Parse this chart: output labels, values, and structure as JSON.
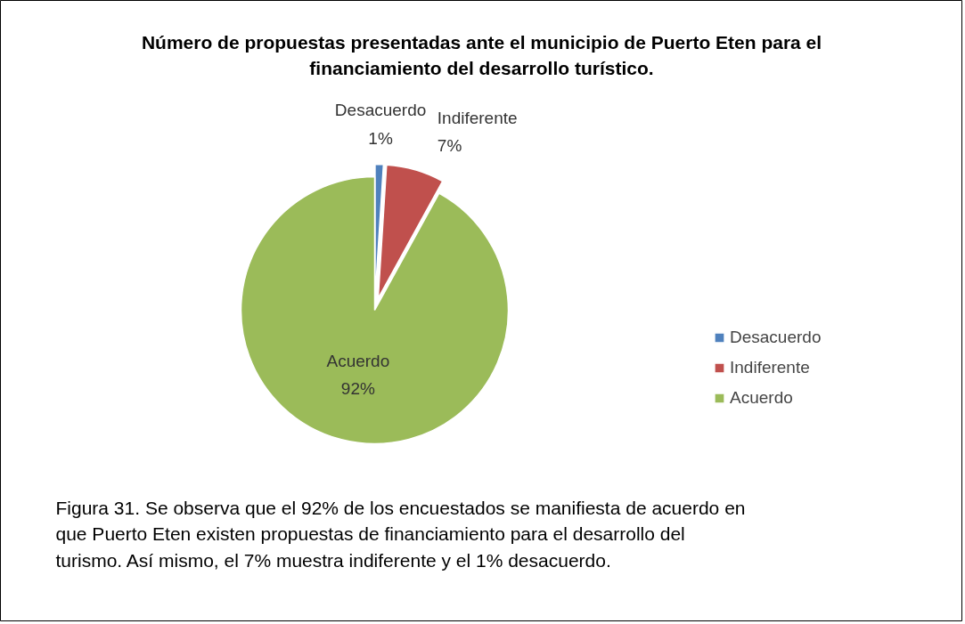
{
  "chart_data": {
    "type": "pie",
    "title": "Número de propuestas presentadas ante el municipio de Puerto Eten para el financiamiento del desarrollo turístico.",
    "categories": [
      "Desacuerdo",
      "Indiferente",
      "Acuerdo"
    ],
    "values": [
      1,
      7,
      92
    ],
    "value_labels": [
      "1%",
      "7%",
      "92%"
    ],
    "colors": [
      "#4f81bd",
      "#c0504d",
      "#9bbb59"
    ],
    "legend": "right",
    "annotations": [
      "Figura 31. Se observa que el 92% de los encuestados se manifiesta de acuerdo en que Puerto Eten existen propuestas de financiamiento para el desarrollo del turismo. Así mismo, el 7% muestra indiferente y el 1% desacuerdo."
    ]
  }
}
